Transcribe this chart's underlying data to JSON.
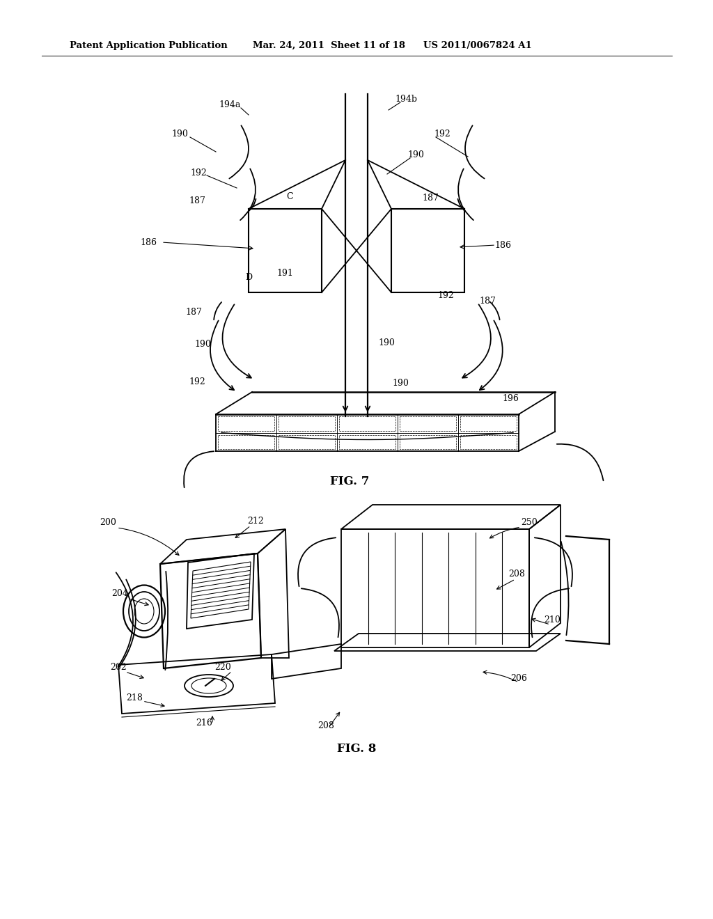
{
  "bg_color": "#ffffff",
  "header_text": "Patent Application Publication",
  "header_date": "Mar. 24, 2011  Sheet 11 of 18",
  "header_patent": "US 2011/0067824 A1",
  "fig7_label": "FIG. 7",
  "fig8_label": "FIG. 8",
  "line_color": "#000000",
  "text_color": "#000000",
  "font_size_header": 9.5,
  "font_size_label": 12,
  "font_size_ref": 9.0
}
